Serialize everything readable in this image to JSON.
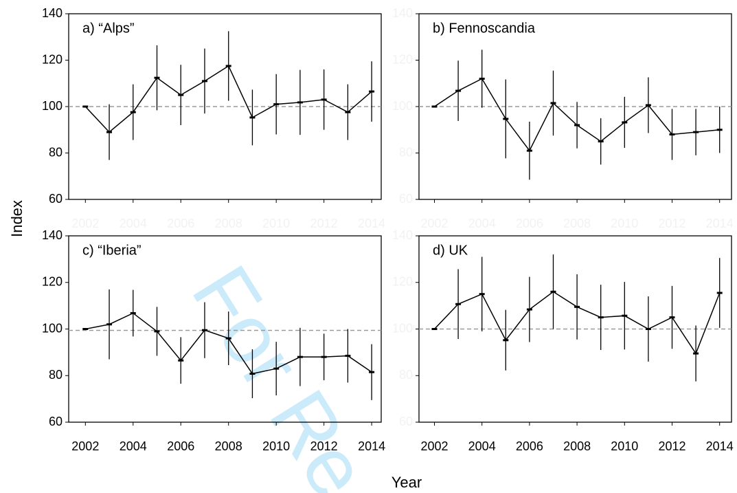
{
  "ylabel": "Index",
  "xlabel": "Year",
  "watermark": "For Re",
  "chart_data": [
    {
      "type": "line",
      "title": "a) “Alps”",
      "color": "#000000",
      "reference": 100,
      "xtick_color": "#f2f2f2",
      "ytick_color": "#000000",
      "x": [
        2002,
        2003,
        2004,
        2005,
        2006,
        2007,
        2008,
        2009,
        2010,
        2011,
        2012,
        2013,
        2014
      ],
      "values": [
        100,
        89,
        97.6,
        112.4,
        105,
        111,
        117.5,
        95.3,
        101,
        101.8,
        103,
        97.6,
        106.5
      ],
      "errors": [
        0,
        12,
        12,
        14,
        13,
        14,
        15,
        12,
        13,
        14,
        13,
        12,
        13
      ],
      "xlim": [
        2001.3,
        2014.4
      ],
      "xticks": [
        2002,
        2004,
        2006,
        2008,
        2010,
        2012,
        2014
      ],
      "ylim": [
        60,
        140
      ],
      "yticks": [
        60,
        80,
        100,
        120,
        140
      ]
    },
    {
      "type": "line",
      "title": "b) Fennoscandia",
      "color": "#000000",
      "reference": 100,
      "xtick_color": "#f2f2f2",
      "ytick_color": "#f2f2f2",
      "x": [
        2002,
        2003,
        2004,
        2005,
        2006,
        2007,
        2008,
        2009,
        2010,
        2011,
        2012,
        2013,
        2014
      ],
      "values": [
        100,
        106.8,
        112,
        94.7,
        81,
        101.5,
        92,
        85,
        93.2,
        100.6,
        88,
        89,
        90
      ],
      "errors": [
        0,
        13,
        12.5,
        17,
        12.5,
        14,
        10,
        10,
        11,
        12,
        11,
        10,
        10
      ],
      "xlim": [
        2001.35,
        2014.5
      ],
      "xticks": [
        2002,
        2004,
        2006,
        2008,
        2010,
        2012,
        2014
      ],
      "ylim": [
        60,
        140
      ],
      "yticks": [
        60,
        80,
        100,
        120,
        140
      ]
    },
    {
      "type": "line",
      "title": "c) “Iberia”",
      "color": "#000000",
      "reference": 99.4,
      "xtick_color": "#000000",
      "ytick_color": "#000000",
      "x": [
        2002,
        2003,
        2004,
        2005,
        2006,
        2007,
        2008,
        2009,
        2010,
        2011,
        2012,
        2013,
        2014
      ],
      "values": [
        100,
        102,
        106.8,
        99,
        86.5,
        99.5,
        96,
        80.8,
        83,
        88,
        88,
        88.5,
        81.5
      ],
      "errors": [
        0,
        15,
        10,
        10.5,
        10,
        12,
        11.5,
        10.5,
        11.5,
        12.5,
        10,
        11.5,
        12
      ],
      "xlim": [
        2001.3,
        2014.4
      ],
      "xticks": [
        2002,
        2004,
        2006,
        2008,
        2010,
        2012,
        2014
      ],
      "ylim": [
        60,
        140
      ],
      "yticks": [
        60,
        80,
        100,
        120,
        140
      ]
    },
    {
      "type": "line",
      "title": "d) UK",
      "color": "#000000",
      "reference": 100,
      "xtick_color": "#000000",
      "ytick_color": "#f2f2f2",
      "x": [
        2002,
        2003,
        2004,
        2005,
        2006,
        2007,
        2008,
        2009,
        2010,
        2011,
        2012,
        2013,
        2014
      ],
      "values": [
        100,
        110.7,
        115,
        95.2,
        108.4,
        116,
        109.5,
        105,
        105.7,
        100,
        105,
        89.5,
        115.5
      ],
      "errors": [
        0,
        15,
        16,
        13,
        14,
        16,
        14,
        14,
        14.5,
        14,
        13.5,
        12,
        15
      ],
      "xlim": [
        2001.35,
        2014.5
      ],
      "xticks": [
        2002,
        2004,
        2006,
        2008,
        2010,
        2012,
        2014
      ],
      "ylim": [
        60,
        140
      ],
      "yticks": [
        60,
        80,
        100,
        120,
        140
      ]
    }
  ]
}
